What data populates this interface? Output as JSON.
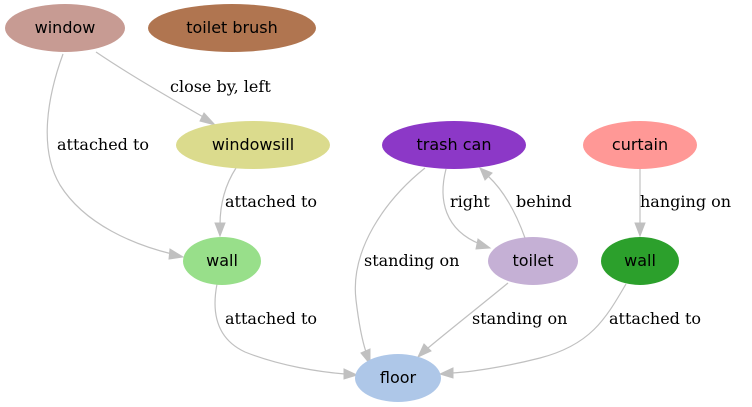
{
  "nodes": {
    "window": {
      "label": "window",
      "color": "#c79b93"
    },
    "toilet_brush": {
      "label": "toilet brush",
      "color": "#b07550"
    },
    "windowsill": {
      "label": "windowsill",
      "color": "#dbdb8d"
    },
    "trash_can": {
      "label": "trash can",
      "color": "#8c38c7"
    },
    "curtain": {
      "label": "curtain",
      "color": "#ff9896"
    },
    "wall_1": {
      "label": "wall",
      "color": "#98df8a"
    },
    "toilet": {
      "label": "toilet",
      "color": "#c5b0d5"
    },
    "wall_2": {
      "label": "wall",
      "color": "#2ca02c"
    },
    "floor": {
      "label": "floor",
      "color": "#aec7e8"
    }
  },
  "edges": [
    {
      "id": "window-windowsill",
      "from": "window",
      "to": "windowsill",
      "label": "close by, left"
    },
    {
      "id": "window-wall1",
      "from": "window",
      "to": "wall_1",
      "label": "attached to"
    },
    {
      "id": "windowsill-wall1",
      "from": "windowsill",
      "to": "wall_1",
      "label": "attached to"
    },
    {
      "id": "wall1-floor",
      "from": "wall_1",
      "to": "floor",
      "label": "attached to"
    },
    {
      "id": "trashcan-floor",
      "from": "trash_can",
      "to": "floor",
      "label": "standing on"
    },
    {
      "id": "trashcan-toilet",
      "from": "trash_can",
      "to": "toilet",
      "label": "right"
    },
    {
      "id": "toilet-trashcan",
      "from": "toilet",
      "to": "trash_can",
      "label": "behind"
    },
    {
      "id": "toilet-floor",
      "from": "toilet",
      "to": "floor",
      "label": "standing on"
    },
    {
      "id": "curtain-wall2",
      "from": "curtain",
      "to": "wall_2",
      "label": "hanging on"
    },
    {
      "id": "wall2-floor",
      "from": "wall_2",
      "to": "floor",
      "label": "attached to"
    }
  ]
}
